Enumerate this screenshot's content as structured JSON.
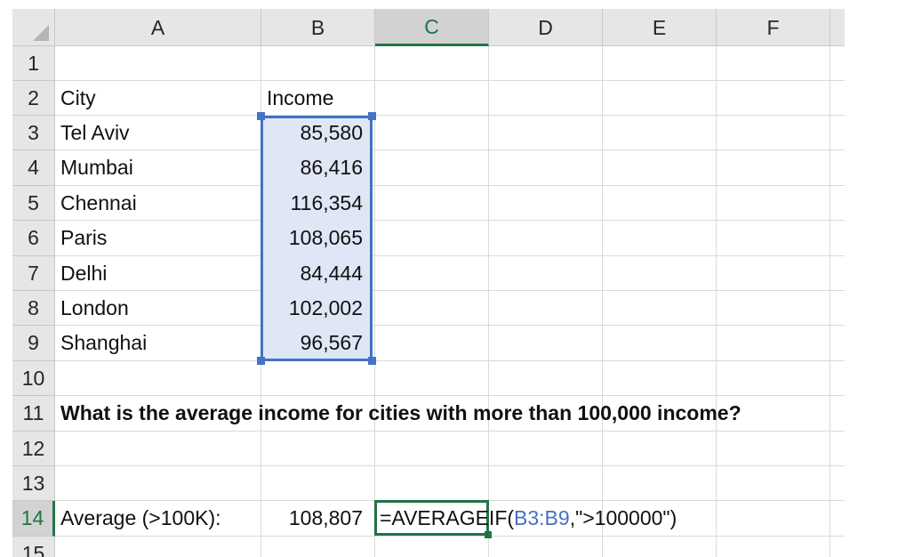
{
  "columns": [
    "A",
    "B",
    "C",
    "D",
    "E",
    "F"
  ],
  "active_column": "C",
  "rows": [
    "1",
    "2",
    "3",
    "4",
    "5",
    "6",
    "7",
    "8",
    "9",
    "10",
    "11",
    "12",
    "13",
    "14",
    "15"
  ],
  "active_row": "14",
  "cells": {
    "A2": "City",
    "B2": "Income",
    "A3": "Tel Aviv",
    "B3": "85,580",
    "A4": "Mumbai",
    "B4": "86,416",
    "A5": "Chennai",
    "B5": "116,354",
    "A6": "Paris",
    "B6": "108,065",
    "A7": "Delhi",
    "B7": "84,444",
    "A8": "London",
    "B8": "102,002",
    "A9": "Shanghai",
    "B9": "96,567",
    "A11": "What is the average income for cities with more than 100,000 income?",
    "A14": "Average (>100K):",
    "B14": "108,807"
  },
  "formula": {
    "prefix": "=AVERAGEIF(",
    "ref": "B3:B9",
    "suffix": ",\">100000\")"
  },
  "colors": {
    "range_border": "#4472c4",
    "range_fill": "#dfe6f5",
    "active_border": "#217346",
    "header_bg": "#e6e6e6",
    "gridline": "#dadada"
  },
  "icons": {
    "corner": "select-all-triangle-icon"
  }
}
